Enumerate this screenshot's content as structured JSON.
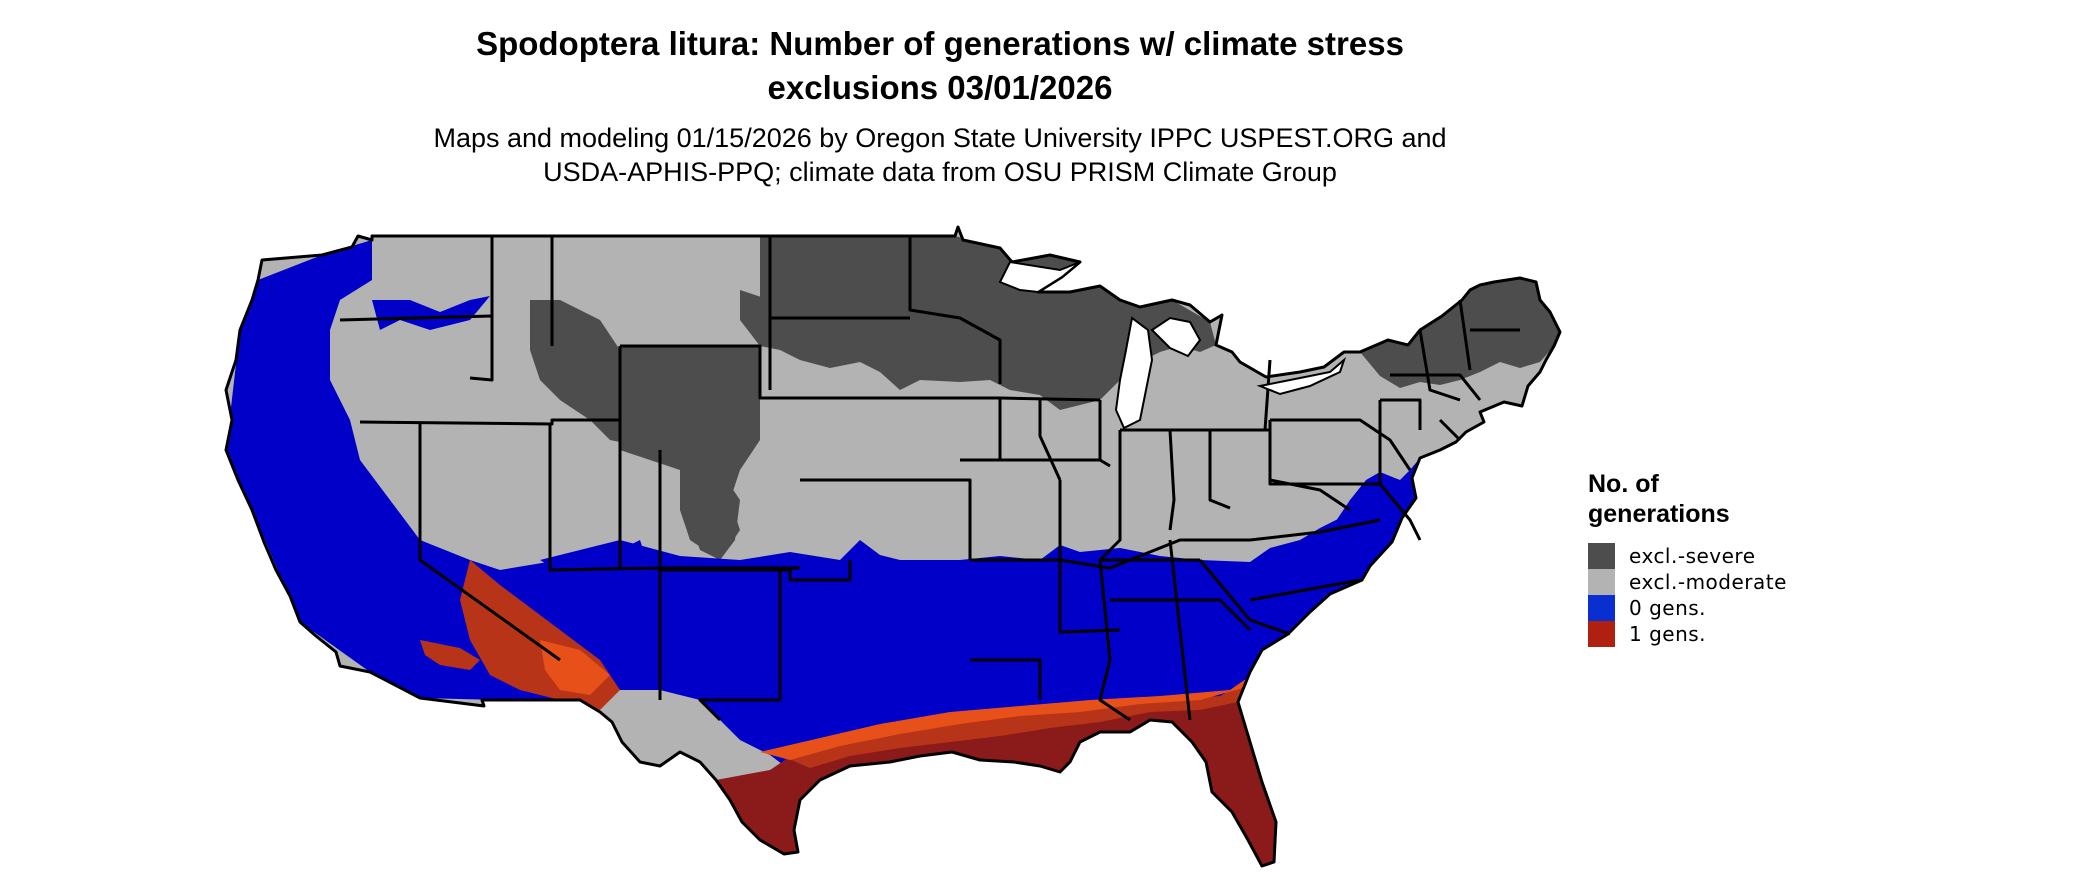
{
  "title": {
    "line1": "Spodoptera litura: Number of generations w/ climate stress",
    "line2": "exclusions 03/01/2026"
  },
  "subtitle": {
    "line1": "Maps and modeling 01/15/2026 by Oregon State University IPPC USPEST.ORG and",
    "line2": "USDA-APHIS-PPQ; climate data from OSU PRISM Climate Group"
  },
  "legend": {
    "title_line1": "No. of",
    "title_line2": "generations",
    "items": [
      {
        "label": "excl.-severe",
        "color": "#4d4d4d"
      },
      {
        "label": "excl.-moderate",
        "color": "#b3b3b3"
      },
      {
        "label": "0 gens.",
        "color": "#0a2fd0"
      },
      {
        "label": "1 gens.",
        "color": "#b02010"
      }
    ]
  },
  "map": {
    "region": "Contiguous United States",
    "colors": {
      "excl_severe": "#4d4d4d",
      "excl_moderate": "#b3b3b3",
      "zero_gens": "#0000c8",
      "one_gens_dark": "#8b1a1a",
      "one_gens_mid": "#b83418",
      "one_gens_light": "#e8501a",
      "state_border": "#000000"
    }
  }
}
